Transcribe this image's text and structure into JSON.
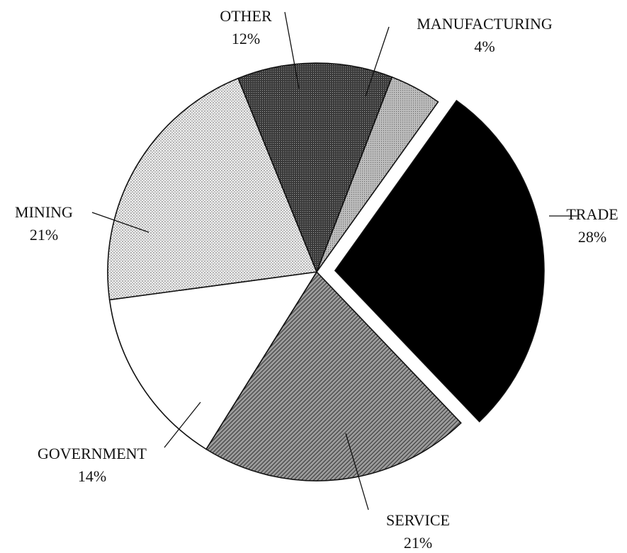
{
  "chart_data": {
    "type": "pie",
    "title": "",
    "slices": [
      {
        "label": "TRADE",
        "pct_label": "28%",
        "value": 28,
        "fill": "solid-black",
        "exploded": true
      },
      {
        "label": "SERVICE",
        "pct_label": "21%",
        "value": 21,
        "fill": "diagonal-hatch"
      },
      {
        "label": "GOVERNMENT",
        "pct_label": "14%",
        "value": 14,
        "fill": "white"
      },
      {
        "label": "MINING",
        "pct_label": "21%",
        "value": 21,
        "fill": "light-dots"
      },
      {
        "label": "OTHER",
        "pct_label": "12%",
        "value": 12,
        "fill": "dark-dots"
      },
      {
        "label": "MANUFACTURING",
        "pct_label": "4%",
        "value": 4,
        "fill": "light-gray-dots"
      }
    ]
  }
}
